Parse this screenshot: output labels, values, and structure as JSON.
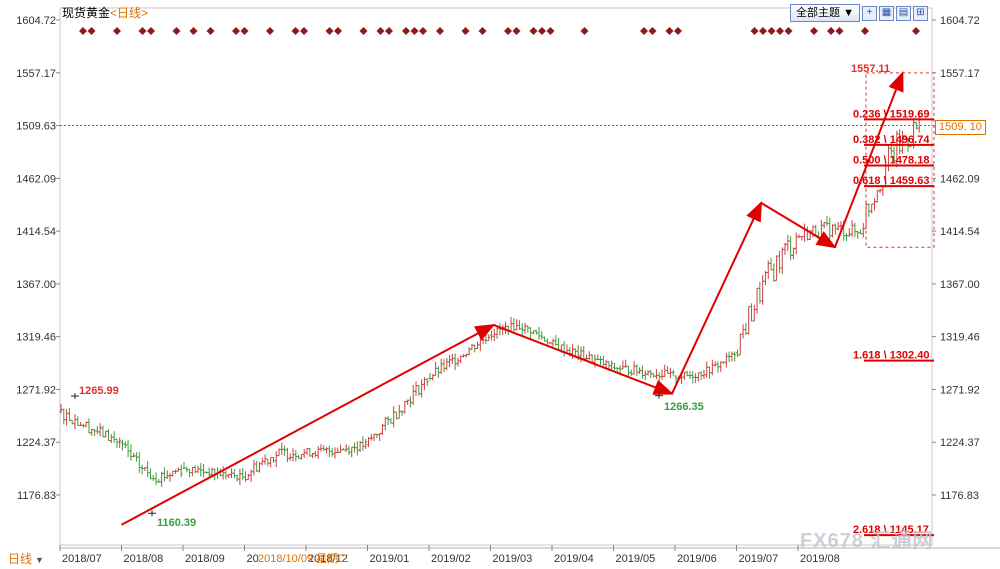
{
  "header": {
    "title": "现货黄金",
    "subtitle": "<日线>",
    "theme_label": "全部主题",
    "toolbar_icons": [
      "grid-plus-icon",
      "tile-view-icon",
      "list-view-icon",
      "expand-icon"
    ]
  },
  "bottom_tab": {
    "label": "日线"
  },
  "current_price": "1509. 10",
  "watermark": "FX678 汇通网",
  "chart_data": {
    "type": "candlestick",
    "title": "现货黄金<日线>",
    "y_ticks": [
      "1604.72",
      "1557.17",
      "1509.63",
      "1462.09",
      "1414.54",
      "1367.00",
      "1319.46",
      "1271.92",
      "1224.37",
      "1176.83"
    ],
    "ylim": [
      1150,
      1615
    ],
    "x_ticks": [
      "2018/07",
      "2018/08",
      "2018/09",
      "20",
      "2018/12",
      "2019/01",
      "2019/02",
      "2019/03",
      "2019/04",
      "2019/05",
      "2019/06",
      "2019/07",
      "2019/08"
    ],
    "crosshair_label": "2018/10/09 星期二",
    "reference_line": 1509.63,
    "price_series_monthly_ohlc": [
      {
        "month": "2018/07",
        "open": 1252,
        "high": 1266,
        "low": 1210,
        "close": 1224
      },
      {
        "month": "2018/08",
        "open": 1224,
        "high": 1228,
        "low": 1160.39,
        "close": 1201
      },
      {
        "month": "2018/09",
        "open": 1201,
        "high": 1214,
        "low": 1180,
        "close": 1193
      },
      {
        "month": "2018/10",
        "open": 1193,
        "high": 1243,
        "low": 1183,
        "close": 1215
      },
      {
        "month": "2018/11",
        "open": 1215,
        "high": 1238,
        "low": 1196,
        "close": 1222
      },
      {
        "month": "2018/12",
        "open": 1222,
        "high": 1283,
        "low": 1220,
        "close": 1282
      },
      {
        "month": "2019/01",
        "open": 1282,
        "high": 1326,
        "low": 1276,
        "close": 1321
      },
      {
        "month": "2019/02",
        "open": 1321,
        "high": 1347,
        "low": 1312,
        "close": 1313
      },
      {
        "month": "2019/03",
        "open": 1313,
        "high": 1325,
        "low": 1281,
        "close": 1292
      },
      {
        "month": "2019/04",
        "open": 1292,
        "high": 1310,
        "low": 1266.35,
        "close": 1284
      },
      {
        "month": "2019/05",
        "open": 1284,
        "high": 1306,
        "low": 1268,
        "close": 1305
      },
      {
        "month": "2019/06",
        "open": 1305,
        "high": 1439,
        "low": 1301,
        "close": 1409
      },
      {
        "month": "2019/07",
        "open": 1409,
        "high": 1453,
        "low": 1381,
        "close": 1413
      },
      {
        "month": "2019/08",
        "open": 1413,
        "high": 1557.11,
        "low": 1400,
        "close": 1509
      }
    ],
    "price_labels": [
      {
        "text": "1265.99",
        "color": "#e03030"
      },
      {
        "text": "1160.39",
        "color": "#3d9a3d"
      },
      {
        "text": "1266.35",
        "color": "#3d9a3d"
      },
      {
        "text": "1557.11",
        "color": "#e03030"
      }
    ],
    "fibonacci_levels": [
      {
        "ratio": "0.236",
        "value": "1519.69",
        "price": 1519.69
      },
      {
        "ratio": "0.382",
        "value": "1496.74",
        "price": 1496.74
      },
      {
        "ratio": "0.500",
        "value": "1478.18",
        "price": 1478.18
      },
      {
        "ratio": "0.618",
        "value": "1459.63",
        "price": 1459.63
      },
      {
        "ratio": "1.618",
        "value": "1302.40",
        "price": 1302.4
      },
      {
        "ratio": "2.618",
        "value": "1145.17",
        "price": 1145.17
      }
    ],
    "trend_arrows": [
      {
        "from": [
          1,
          1150
        ],
        "to": [
          7.05,
          1330
        ]
      },
      {
        "from": [
          7.05,
          1330
        ],
        "to": [
          9.95,
          1268
        ]
      },
      {
        "from": [
          9.95,
          1268
        ],
        "to": [
          11.4,
          1440
        ]
      },
      {
        "from": [
          11.4,
          1440
        ],
        "to": [
          12.6,
          1400
        ]
      },
      {
        "from": [
          12.6,
          1400
        ],
        "to": [
          13.7,
          1557
        ]
      }
    ],
    "event_marker_color": "#8b1a1a",
    "up_color": "#d23c3c",
    "down_color": "#3d9a3d"
  }
}
